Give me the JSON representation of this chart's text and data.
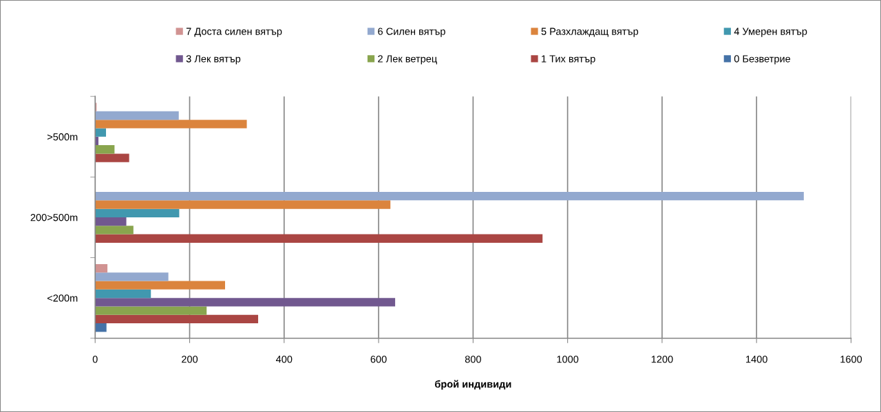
{
  "chart_data": {
    "type": "bar",
    "orientation": "horizontal",
    "categories": [
      ">500m",
      "200>500m",
      "<200m"
    ],
    "xlabel": "брой индивиди",
    "xlim": [
      0,
      1600
    ],
    "xticks": [
      0,
      200,
      400,
      600,
      800,
      1000,
      1200,
      1400,
      1600
    ],
    "grid": "x",
    "legend": "top",
    "series": [
      {
        "name": "0 Безветрие",
        "color": "#4572a7",
        "values": [
          null,
          null,
          24
        ]
      },
      {
        "name": "1 Тих вятър",
        "color": "#aa4643",
        "values": [
          72,
          947,
          345
        ]
      },
      {
        "name": "2 Лек ветрец",
        "color": "#89a54e",
        "values": [
          41,
          81,
          236
        ]
      },
      {
        "name": "3 Лек вятър",
        "color": "#71588f",
        "values": [
          7,
          66,
          635
        ]
      },
      {
        "name": "4 Умерен вятър",
        "color": "#4198af",
        "values": [
          23,
          178,
          118
        ]
      },
      {
        "name": "5 Разхлаждащ вятър",
        "color": "#db843d",
        "values": [
          321,
          625,
          275
        ]
      },
      {
        "name": "6 Силен вятър",
        "color": "#93a9cf",
        "values": [
          177,
          1500,
          155
        ]
      },
      {
        "name": "7 Доста силен вятър",
        "color": "#d19392",
        "values": [
          3,
          1,
          26
        ]
      }
    ]
  }
}
